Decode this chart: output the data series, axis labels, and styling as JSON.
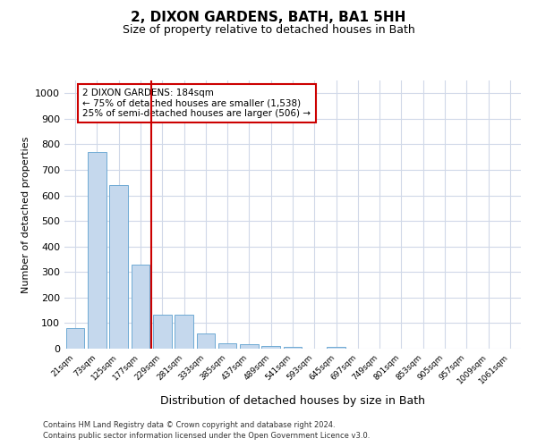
{
  "title": "2, DIXON GARDENS, BATH, BA1 5HH",
  "subtitle": "Size of property relative to detached houses in Bath",
  "xlabel": "Distribution of detached houses by size in Bath",
  "ylabel": "Number of detached properties",
  "categories": [
    "21sqm",
    "73sqm",
    "125sqm",
    "177sqm",
    "229sqm",
    "281sqm",
    "333sqm",
    "385sqm",
    "437sqm",
    "489sqm",
    "541sqm",
    "593sqm",
    "645sqm",
    "697sqm",
    "749sqm",
    "801sqm",
    "853sqm",
    "905sqm",
    "957sqm",
    "1009sqm",
    "1061sqm"
  ],
  "values": [
    82,
    770,
    640,
    330,
    133,
    133,
    58,
    22,
    18,
    12,
    8,
    0,
    8,
    0,
    0,
    0,
    0,
    0,
    0,
    0,
    0
  ],
  "bar_color": "#c5d8ed",
  "bar_edge_color": "#6faad4",
  "grid_color": "#d0d8e8",
  "vline_color": "#cc0000",
  "annotation_text": "2 DIXON GARDENS: 184sqm\n← 75% of detached houses are smaller (1,538)\n25% of semi-detached houses are larger (506) →",
  "annotation_box_color": "#ffffff",
  "annotation_box_edge": "#cc0000",
  "ylim": [
    0,
    1050
  ],
  "yticks": [
    0,
    100,
    200,
    300,
    400,
    500,
    600,
    700,
    800,
    900,
    1000
  ],
  "footer1": "Contains HM Land Registry data © Crown copyright and database right 2024.",
  "footer2": "Contains public sector information licensed under the Open Government Licence v3.0."
}
